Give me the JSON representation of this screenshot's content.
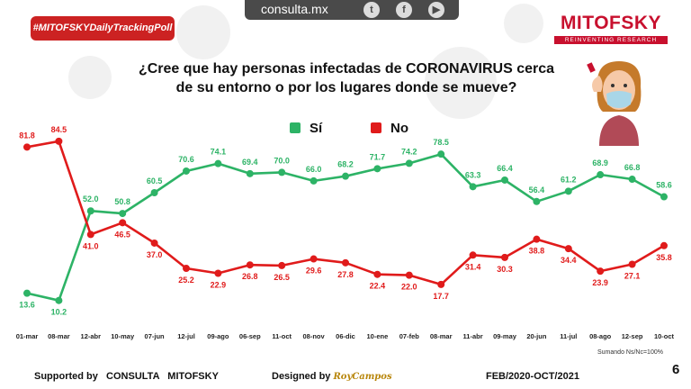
{
  "header": {
    "hashtag": "#MITOFSKYDailyTrackingPoll",
    "site": "consulta.mx",
    "social": [
      "twitter-icon",
      "facebook-icon",
      "youtube-icon"
    ],
    "brand_name": "MITOFSKY",
    "brand_tagline": "REINVENTING RESEARCH"
  },
  "question_line1": "¿Cree que hay personas infectadas de CORONAVIRUS cerca",
  "question_line2": "de su entorno o por los lugares donde se mueve?",
  "colors": {
    "si": "#2db366",
    "no": "#e01b1b",
    "brand": "#c8102e"
  },
  "chart_data": {
    "type": "line",
    "categories": [
      "01-mar",
      "08-mar",
      "12-abr",
      "10-may",
      "07-jun",
      "12-jul",
      "09-ago",
      "06-sep",
      "11-oct",
      "08-nov",
      "06-dic",
      "10-ene",
      "07-feb",
      "08-mar",
      "11-abr",
      "09-may",
      "20-jun",
      "11-jul",
      "08-ago",
      "12-sep",
      "10-oct"
    ],
    "series": [
      {
        "name": "Sí",
        "values": [
          13.6,
          10.2,
          52.0,
          50.8,
          60.5,
          70.6,
          74.1,
          69.4,
          70.0,
          66.0,
          68.2,
          71.7,
          74.2,
          78.5,
          63.3,
          66.4,
          56.4,
          61.2,
          68.9,
          66.8,
          58.6
        ]
      },
      {
        "name": "No",
        "values": [
          81.8,
          84.5,
          41.0,
          46.5,
          37.0,
          25.2,
          22.9,
          26.8,
          26.5,
          29.6,
          27.8,
          22.4,
          22.0,
          17.7,
          31.4,
          30.3,
          38.8,
          34.4,
          23.9,
          27.1,
          35.8
        ]
      }
    ],
    "ylim": [
      0,
      100
    ],
    "grid": false,
    "legend_position": "top-center"
  },
  "labels": {
    "si": [
      "13.6",
      "10.2",
      "52.0",
      "50.8",
      "60.5",
      "70.6",
      "74.1",
      "69.4",
      "70.0",
      "66.0",
      "68.2",
      "71.7",
      "74.2",
      "78.5",
      "63.3",
      "66.4",
      "56.4",
      "61.2",
      "68.9",
      "66.8",
      "58.6"
    ],
    "no": [
      "81.8",
      "84.5",
      "41.0",
      "46.5",
      "37.0",
      "25.2",
      "22.9",
      "26.8",
      "26.5",
      "29.6",
      "27.8",
      "22.4",
      "22.0",
      "17.7",
      "31.4",
      "30.3",
      "38.8",
      "34.4",
      "23.9",
      "27.1",
      "35.8"
    ]
  },
  "note": "Sumando Ns/Nc=100%",
  "page_number": "6",
  "footer": {
    "supported": "Supported by   CONSULTA   MITOFSKY",
    "designed": "Designed by",
    "signature": "RoyCampos",
    "period": "FEB/2020-OCT/2021"
  }
}
